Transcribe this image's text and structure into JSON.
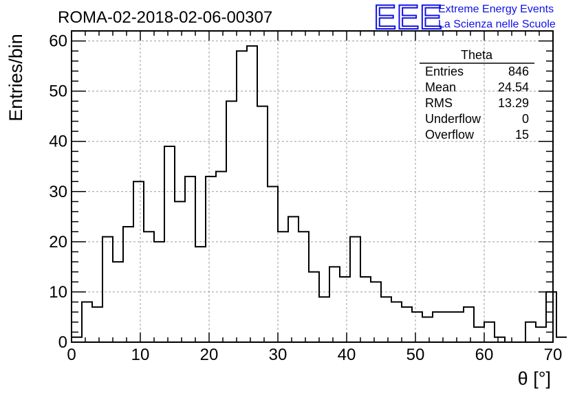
{
  "chart_data": {
    "type": "bar",
    "histogram": true,
    "title": "ROMA-02-2018-02-06-00307",
    "xlabel": "θ [°]",
    "ylabel": "Entries/bin",
    "xlim": [
      0,
      70
    ],
    "ylim": [
      0,
      62
    ],
    "xticks": [
      0,
      10,
      20,
      30,
      40,
      50,
      60,
      70
    ],
    "yticks": [
      0,
      10,
      20,
      30,
      40,
      50,
      60
    ],
    "grid": true,
    "bin_edges_start": 0,
    "bin_width": 1.5,
    "values": [
      1,
      8,
      7,
      21,
      16,
      23,
      32,
      22,
      20,
      39,
      28,
      33,
      19,
      33,
      34,
      48,
      58,
      59,
      47,
      31,
      22,
      25,
      22,
      14,
      9,
      15,
      13,
      21,
      13,
      12,
      9,
      8,
      7,
      6,
      5,
      6,
      6,
      6,
      7,
      3,
      4,
      1,
      0,
      0,
      4,
      3,
      10,
      1
    ],
    "stats_box": {
      "title": "Theta",
      "rows": [
        {
          "label": "Entries",
          "value": "846"
        },
        {
          "label": "Mean",
          "value": "24.54"
        },
        {
          "label": "RMS",
          "value": "13.29"
        },
        {
          "label": "Underflow",
          "value": "0"
        },
        {
          "label": "Overflow",
          "value": "15"
        }
      ]
    }
  },
  "logo": {
    "mark": "EEE",
    "line1": "Extreme Energy Events",
    "line2": "La Scienza nelle Scuole",
    "color": "#1010e6"
  }
}
